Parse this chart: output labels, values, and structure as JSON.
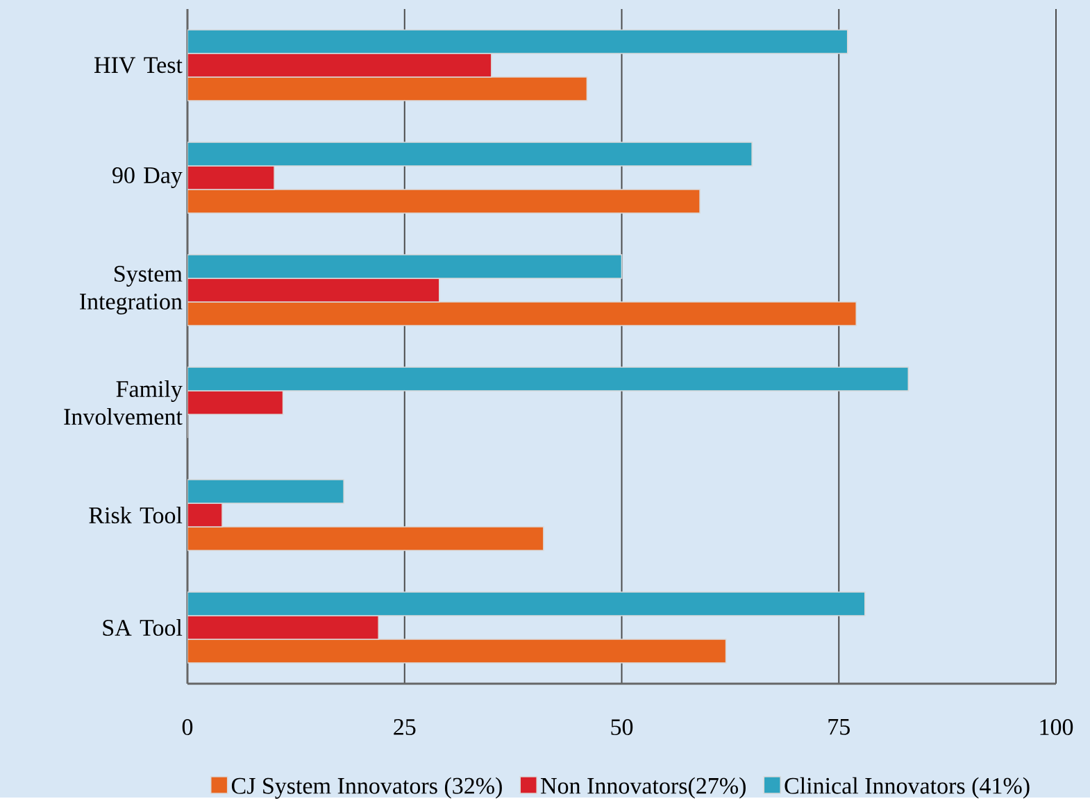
{
  "chart_data": {
    "type": "bar",
    "orientation": "horizontal",
    "categories": [
      "HIV Test",
      "90 Day",
      "System Integration",
      "Family Involvement",
      "Risk Tool",
      "SA Tool"
    ],
    "series": [
      {
        "name": "CJ System Innovators (32%)",
        "color": "#e8641e",
        "values": [
          46,
          59,
          77,
          0,
          41,
          62
        ]
      },
      {
        "name": "Non Innovators(27%)",
        "color": "#d9202a",
        "values": [
          35,
          10,
          29,
          11,
          4,
          22
        ]
      },
      {
        "name": "Clinical Innovators (41%)",
        "color": "#2ea3c0",
        "values": [
          76,
          65,
          50,
          83,
          18,
          78
        ]
      }
    ],
    "xlim": [
      0,
      100
    ],
    "xticks": [
      0,
      25,
      50,
      75,
      100
    ],
    "grid": "x",
    "legend": "bottom"
  }
}
